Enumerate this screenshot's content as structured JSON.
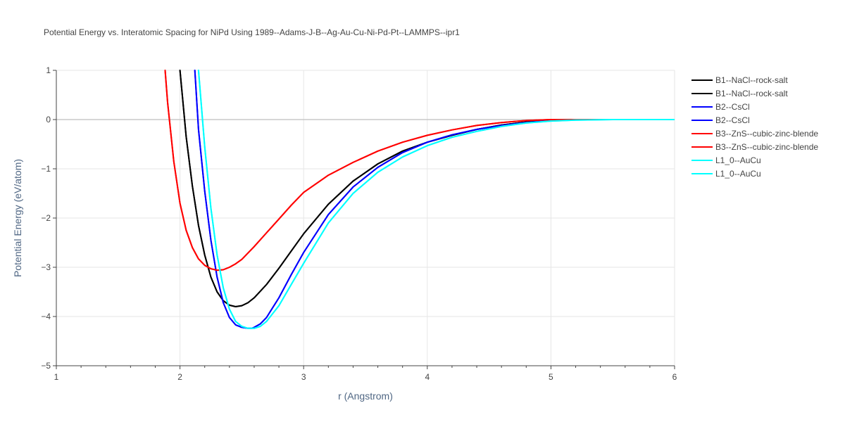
{
  "chart_data": {
    "type": "line",
    "title": "Potential Energy vs. Interatomic Spacing for NiPd Using 1989--Adams-J-B--Ag-Au-Cu-Ni-Pd-Pt--LAMMPS--ipr1",
    "xlabel": "r (Angstrom)",
    "ylabel": "Potential Energy (eV/atom)",
    "xlim": [
      1,
      6
    ],
    "ylim": [
      -5,
      1
    ],
    "x_ticks": [
      "1",
      "2",
      "3",
      "4",
      "5",
      "6"
    ],
    "y_ticks": [
      "1",
      "0",
      "−1",
      "−2",
      "−3",
      "−4",
      "−5"
    ],
    "grid": true,
    "legend_position": "right",
    "series": [
      {
        "name": "B1--NaCl--rock-salt",
        "color": "#000000",
        "x": [
          2.0,
          2.05,
          2.1,
          2.15,
          2.2,
          2.25,
          2.3,
          2.35,
          2.4,
          2.45,
          2.5,
          2.55,
          2.6,
          2.7,
          2.8,
          2.9,
          3.0,
          3.2,
          3.4,
          3.6,
          3.8,
          4.0,
          4.2,
          4.4,
          4.6,
          4.8,
          5.0,
          5.2,
          5.5,
          6.0
        ],
        "y": [
          1.0,
          -0.35,
          -1.35,
          -2.15,
          -2.75,
          -3.2,
          -3.5,
          -3.68,
          -3.77,
          -3.8,
          -3.78,
          -3.72,
          -3.62,
          -3.35,
          -3.02,
          -2.67,
          -2.32,
          -1.72,
          -1.25,
          -0.9,
          -0.64,
          -0.46,
          -0.32,
          -0.2,
          -0.11,
          -0.05,
          -0.01,
          0.0,
          0.0,
          0.0
        ]
      },
      {
        "name": "B1--NaCl--rock-salt",
        "color": "#000000",
        "x": [
          2.0,
          2.05,
          2.1,
          2.15,
          2.2,
          2.25,
          2.3,
          2.35,
          2.4,
          2.45,
          2.5,
          2.55,
          2.6,
          2.7,
          2.8,
          2.9,
          3.0,
          3.2,
          3.4,
          3.6,
          3.8,
          4.0,
          4.2,
          4.4,
          4.6,
          4.8,
          5.0,
          5.2,
          5.5,
          6.0
        ],
        "y": [
          1.0,
          -0.35,
          -1.35,
          -2.15,
          -2.75,
          -3.2,
          -3.5,
          -3.68,
          -3.77,
          -3.8,
          -3.78,
          -3.72,
          -3.62,
          -3.35,
          -3.02,
          -2.67,
          -2.32,
          -1.72,
          -1.25,
          -0.9,
          -0.64,
          -0.46,
          -0.32,
          -0.2,
          -0.11,
          -0.05,
          -0.01,
          0.0,
          0.0,
          0.0
        ]
      },
      {
        "name": "B2--CsCl",
        "color": "#0000ff",
        "x": [
          2.12,
          2.15,
          2.2,
          2.25,
          2.3,
          2.35,
          2.4,
          2.45,
          2.5,
          2.55,
          2.58,
          2.6,
          2.65,
          2.7,
          2.8,
          2.9,
          3.0,
          3.2,
          3.4,
          3.6,
          3.8,
          4.0,
          4.2,
          4.4,
          4.6,
          4.8,
          5.0,
          5.2,
          5.5,
          6.0
        ],
        "y": [
          1.0,
          -0.2,
          -1.45,
          -2.45,
          -3.2,
          -3.72,
          -4.02,
          -4.17,
          -4.22,
          -4.24,
          -4.24,
          -4.22,
          -4.15,
          -4.02,
          -3.62,
          -3.15,
          -2.7,
          -1.93,
          -1.37,
          -0.97,
          -0.67,
          -0.46,
          -0.31,
          -0.2,
          -0.12,
          -0.06,
          -0.02,
          0.0,
          0.0,
          0.0
        ]
      },
      {
        "name": "B2--CsCl",
        "color": "#0000ff",
        "x": [
          2.12,
          2.15,
          2.2,
          2.25,
          2.3,
          2.35,
          2.4,
          2.45,
          2.5,
          2.55,
          2.58,
          2.6,
          2.65,
          2.7,
          2.8,
          2.9,
          3.0,
          3.2,
          3.4,
          3.6,
          3.8,
          4.0,
          4.2,
          4.4,
          4.6,
          4.8,
          5.0,
          5.2,
          5.5,
          6.0
        ],
        "y": [
          1.0,
          -0.2,
          -1.45,
          -2.45,
          -3.2,
          -3.72,
          -4.02,
          -4.17,
          -4.22,
          -4.24,
          -4.24,
          -4.22,
          -4.15,
          -4.02,
          -3.62,
          -3.15,
          -2.7,
          -1.93,
          -1.37,
          -0.97,
          -0.67,
          -0.46,
          -0.31,
          -0.2,
          -0.12,
          -0.06,
          -0.02,
          0.0,
          0.0,
          0.0
        ]
      },
      {
        "name": "B3--ZnS--cubic-zinc-blende",
        "color": "#ff0000",
        "x": [
          1.88,
          1.9,
          1.95,
          2.0,
          2.05,
          2.1,
          2.15,
          2.2,
          2.25,
          2.3,
          2.35,
          2.4,
          2.45,
          2.5,
          2.6,
          2.7,
          2.8,
          2.9,
          3.0,
          3.2,
          3.4,
          3.6,
          3.8,
          4.0,
          4.2,
          4.4,
          4.6,
          4.8,
          5.0,
          5.5,
          6.0
        ],
        "y": [
          1.0,
          0.35,
          -0.85,
          -1.7,
          -2.25,
          -2.6,
          -2.83,
          -2.96,
          -3.03,
          -3.06,
          -3.05,
          -3.0,
          -2.93,
          -2.84,
          -2.58,
          -2.3,
          -2.02,
          -1.74,
          -1.48,
          -1.13,
          -0.87,
          -0.64,
          -0.46,
          -0.32,
          -0.21,
          -0.12,
          -0.06,
          -0.02,
          0.0,
          0.0,
          0.0
        ]
      },
      {
        "name": "B3--ZnS--cubic-zinc-blende",
        "color": "#ff0000",
        "x": [
          1.88,
          1.9,
          1.95,
          2.0,
          2.05,
          2.1,
          2.15,
          2.2,
          2.25,
          2.3,
          2.35,
          2.4,
          2.45,
          2.5,
          2.6,
          2.7,
          2.8,
          2.9,
          3.0,
          3.2,
          3.4,
          3.6,
          3.8,
          4.0,
          4.2,
          4.4,
          4.6,
          4.8,
          5.0,
          5.5,
          6.0
        ],
        "y": [
          1.0,
          0.35,
          -0.85,
          -1.7,
          -2.25,
          -2.6,
          -2.83,
          -2.96,
          -3.03,
          -3.06,
          -3.05,
          -3.0,
          -2.93,
          -2.84,
          -2.58,
          -2.3,
          -2.02,
          -1.74,
          -1.48,
          -1.13,
          -0.87,
          -0.64,
          -0.46,
          -0.32,
          -0.21,
          -0.12,
          -0.06,
          -0.02,
          0.0,
          0.0,
          0.0
        ]
      },
      {
        "name": "L1_0--AuCu",
        "color": "#00ffff",
        "x": [
          2.15,
          2.2,
          2.25,
          2.3,
          2.35,
          2.4,
          2.45,
          2.5,
          2.55,
          2.6,
          2.65,
          2.7,
          2.8,
          2.9,
          3.0,
          3.2,
          3.4,
          3.6,
          3.8,
          4.0,
          4.2,
          4.4,
          4.6,
          4.8,
          5.0,
          5.2,
          5.5,
          6.0
        ],
        "y": [
          1.0,
          -0.55,
          -1.8,
          -2.75,
          -3.42,
          -3.85,
          -4.1,
          -4.2,
          -4.24,
          -4.24,
          -4.2,
          -4.1,
          -3.78,
          -3.35,
          -2.92,
          -2.1,
          -1.5,
          -1.07,
          -0.76,
          -0.53,
          -0.36,
          -0.24,
          -0.14,
          -0.07,
          -0.03,
          -0.01,
          0.0,
          0.0
        ]
      },
      {
        "name": "L1_0--AuCu",
        "color": "#00ffff",
        "x": [
          2.15,
          2.2,
          2.25,
          2.3,
          2.35,
          2.4,
          2.45,
          2.5,
          2.55,
          2.6,
          2.65,
          2.7,
          2.8,
          2.9,
          3.0,
          3.2,
          3.4,
          3.6,
          3.8,
          4.0,
          4.2,
          4.4,
          4.6,
          4.8,
          5.0,
          5.2,
          5.5,
          6.0
        ],
        "y": [
          1.0,
          -0.55,
          -1.8,
          -2.75,
          -3.42,
          -3.85,
          -4.1,
          -4.2,
          -4.24,
          -4.24,
          -4.2,
          -4.1,
          -3.78,
          -3.35,
          -2.92,
          -2.1,
          -1.5,
          -1.07,
          -0.76,
          -0.53,
          -0.36,
          -0.24,
          -0.14,
          -0.07,
          -0.03,
          -0.01,
          0.0,
          0.0
        ]
      }
    ]
  }
}
